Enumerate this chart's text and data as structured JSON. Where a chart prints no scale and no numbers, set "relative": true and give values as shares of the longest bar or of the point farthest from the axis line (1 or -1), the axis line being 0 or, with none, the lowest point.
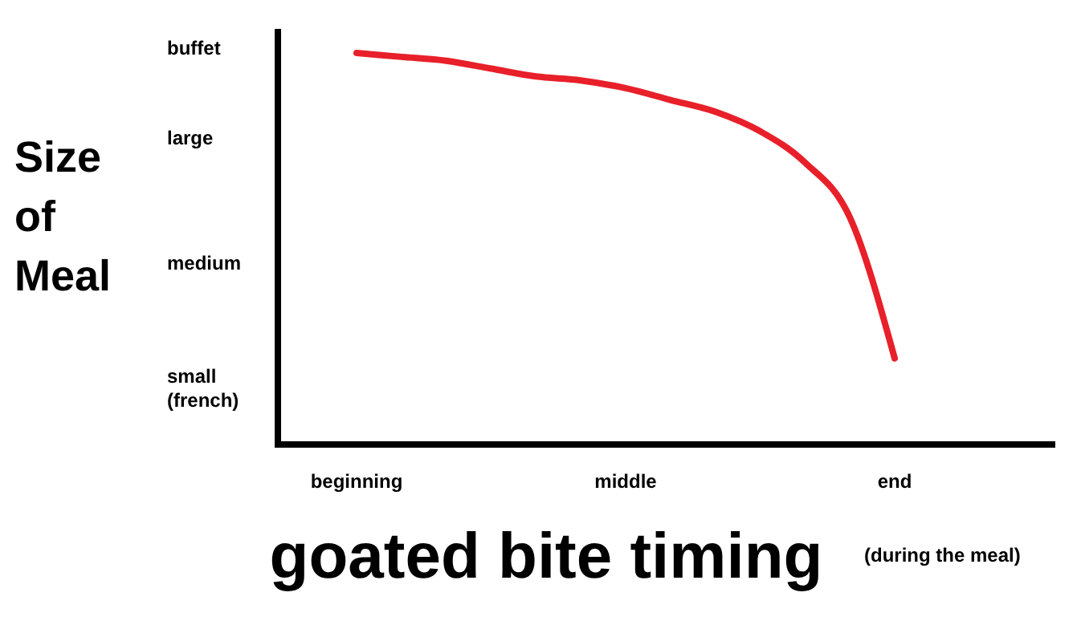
{
  "chart_data": {
    "type": "line",
    "relative": true,
    "xlabel": "goated bite timing",
    "ylabel": "Size of Meal",
    "annotations": [
      "(during the meal)",
      "buffet",
      "large",
      "medium",
      "small (french)"
    ],
    "categories": [
      "beginning",
      null,
      null,
      null,
      null,
      null,
      "middle",
      null,
      null,
      null,
      null,
      null,
      "end"
    ],
    "series": [
      {
        "color": "#e8202a",
        "values": [
          1,
          0.99,
          0.98,
          0.96,
          0.94,
          0.93,
          0.91,
          0.88,
          0.85,
          0.8,
          0.72,
          0.58,
          0.22
        ]
      }
    ],
    "marker": "none",
    "line_style": "solid"
  }
}
